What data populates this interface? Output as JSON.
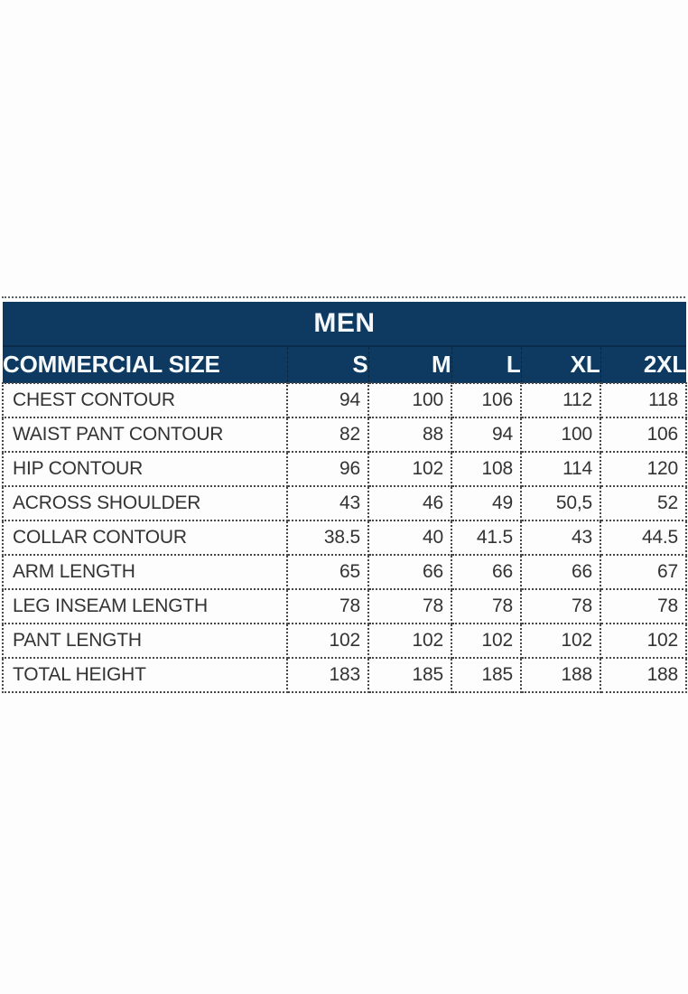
{
  "chart_data": {
    "type": "table",
    "title": "MEN",
    "header_label": "COMMERCIAL SIZE",
    "sizes": [
      "S",
      "M",
      "L",
      "XL",
      "2XL"
    ],
    "rows": [
      {
        "label": "CHEST CONTOUR",
        "values": [
          "94",
          "100",
          "106",
          "112",
          "118"
        ]
      },
      {
        "label": "WAIST PANT CONTOUR",
        "values": [
          "82",
          "88",
          "94",
          "100",
          "106"
        ]
      },
      {
        "label": "HIP CONTOUR",
        "values": [
          "96",
          "102",
          "108",
          "114",
          "120"
        ]
      },
      {
        "label": "ACROSS SHOULDER",
        "values": [
          "43",
          "46",
          "49",
          "50,5",
          "52"
        ]
      },
      {
        "label": "COLLAR CONTOUR",
        "values": [
          "38.5",
          "40",
          "41.5",
          "43",
          "44.5"
        ]
      },
      {
        "label": "ARM LENGTH",
        "values": [
          "65",
          "66",
          "66",
          "66",
          "67"
        ]
      },
      {
        "label": "LEG INSEAM LENGTH",
        "values": [
          "78",
          "78",
          "78",
          "78",
          "78"
        ]
      },
      {
        "label": "PANT LENGTH",
        "values": [
          "102",
          "102",
          "102",
          "102",
          "102"
        ]
      },
      {
        "label": "TOTAL HEIGHT",
        "values": [
          "183",
          "185",
          "185",
          "188",
          "188"
        ]
      }
    ],
    "layout": {
      "grid": "dotted",
      "legend": "none"
    },
    "colors": {
      "header_bg": "#0e3a61",
      "header_divider": "#0a2c4a",
      "header_text": "#f4f8fc",
      "body_text": "#333333",
      "grid_line": "#474747",
      "background": "#fdfdfe"
    }
  }
}
